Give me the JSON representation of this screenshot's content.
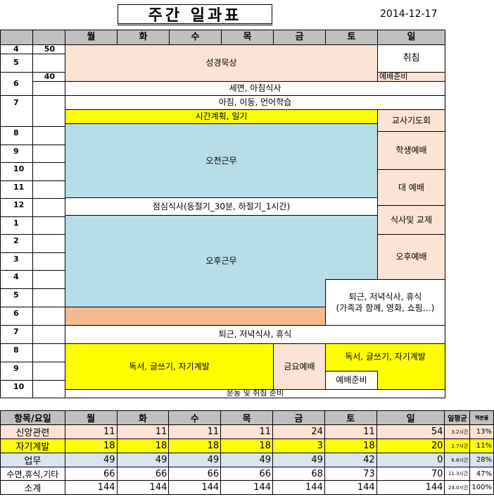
{
  "title": "주간 일과표",
  "date": "2014-12-17",
  "days": [
    "월",
    "화",
    "수",
    "목",
    "금",
    "토",
    "일"
  ],
  "hours": [
    "4",
    "5",
    "6",
    "7",
    "8",
    "9",
    "10",
    "11",
    "12",
    "1",
    "2",
    "3",
    "4",
    "5",
    "6",
    "7",
    "8",
    "9",
    "10"
  ],
  "minutes": {
    "row0": "50",
    "row2": "40"
  },
  "blocks": {
    "prayer": "성경묵상",
    "sleep": "취침",
    "worship_prep": "예배준비",
    "wash": "세면, 아침식사",
    "commute": "아침, 이동, 언어학습",
    "planning": "시간계획, 일기",
    "teacher_prayer": "교사기도회",
    "morning_work": "오전근무",
    "student_worship": "학생예배",
    "main_worship": "대 예배",
    "lunch": "점심식사(동절기_30분, 하절기_1시간)",
    "meal_exchange": "식사및 교제",
    "afternoon_work": "오후근무",
    "afternoon_worship": "오후예배",
    "sat_evening_1": "퇴근, 저녁식사, 휴식",
    "sat_evening_2": "(가족과 함께, 영화, 쇼핑…)",
    "evening": "퇴근, 저녁식사, 휴식",
    "reading": "독서, 글쓰기, 자기계발",
    "fri_worship": "금요예배",
    "reading_sat": "독서, 글쓰기, 자기계발",
    "worship_prep2": "예배준비",
    "exercise": "운동 및 취침 준비"
  },
  "summary": {
    "header": {
      "label": "항목/요일",
      "avg": "일평균",
      "ratio": "백분율"
    },
    "rows": [
      {
        "label": "신앙관련",
        "values": [
          "11",
          "11",
          "11",
          "11",
          "24",
          "11",
          "54"
        ],
        "avg": "3.2시간",
        "pct": "13%"
      },
      {
        "label": "자기계발",
        "values": [
          "18",
          "18",
          "18",
          "18",
          "3",
          "18",
          "20"
        ],
        "avg": "2.7시간",
        "pct": "11%"
      },
      {
        "label": "업무",
        "values": [
          "49",
          "49",
          "49",
          "49",
          "49",
          "42",
          "0"
        ],
        "avg": "6.8시간",
        "pct": "28%"
      },
      {
        "label": "수면,휴식,기타",
        "values": [
          "66",
          "66",
          "66",
          "66",
          "68",
          "73",
          "70"
        ],
        "avg": "11.3시간",
        "pct": "47%"
      },
      {
        "label": "소계",
        "values": [
          "144",
          "144",
          "144",
          "144",
          "144",
          "144",
          "144"
        ],
        "avg": "24.0시간",
        "pct": "100%"
      }
    ]
  },
  "colors": {
    "peach": "#fbe4d5",
    "yellow": "#ffff00",
    "blue": "#b7dde8",
    "orange": "#f8b98e",
    "header": "#c0c0c0"
  }
}
